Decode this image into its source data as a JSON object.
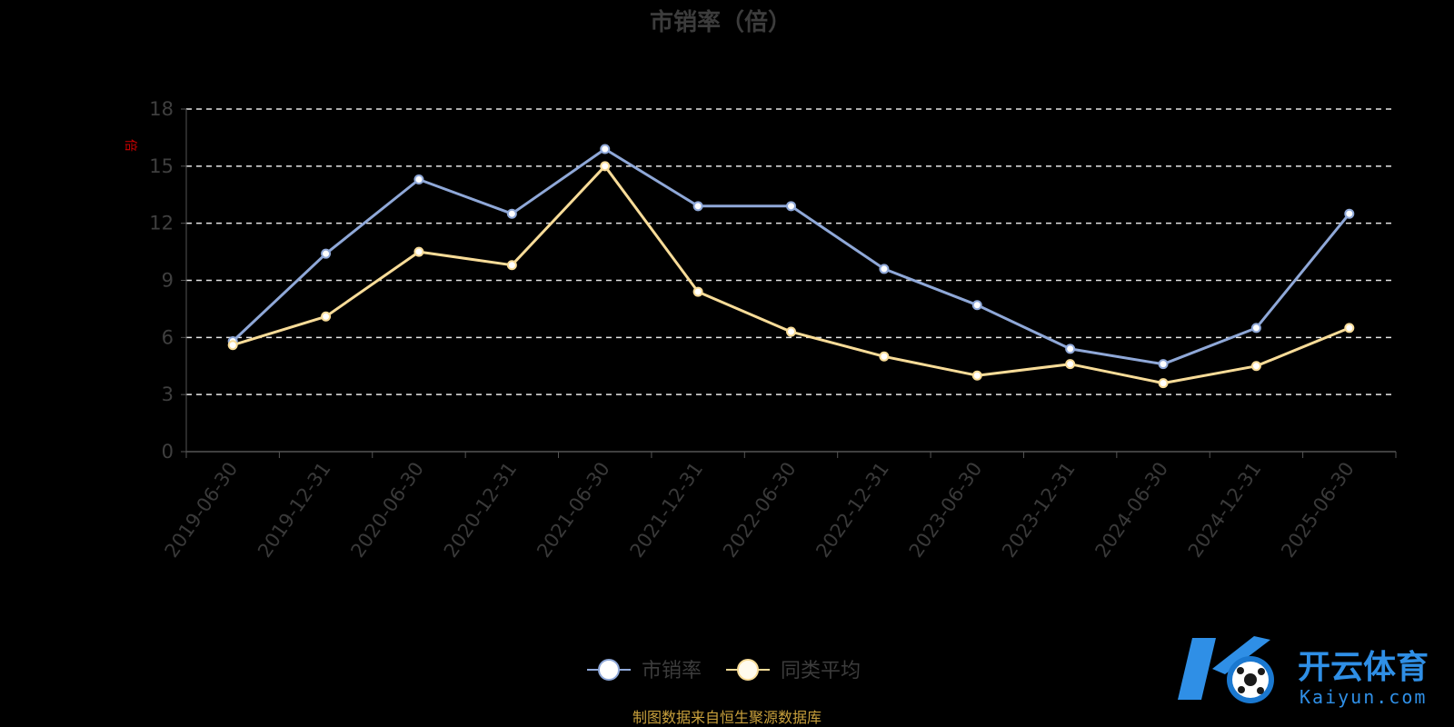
{
  "chart_data": {
    "type": "line",
    "title": "市销率（倍）",
    "ylabel": "倍",
    "xlabel": "",
    "categories": [
      "2019-06-30",
      "2019-12-31",
      "2020-06-30",
      "2020-12-31",
      "2021-06-30",
      "2021-12-31",
      "2022-06-30",
      "2022-12-31",
      "2023-06-30",
      "2023-12-31",
      "2024-06-30",
      "2024-12-31",
      "2025-06-30"
    ],
    "ylim": [
      0,
      18
    ],
    "yticks": [
      0,
      3,
      6,
      9,
      12,
      15,
      18
    ],
    "grid": true,
    "legend_position": "bottom-center",
    "series": [
      {
        "name": "市销率",
        "color": "#8fa8d8",
        "values": [
          5.8,
          10.4,
          14.3,
          12.5,
          15.9,
          12.9,
          12.9,
          9.6,
          7.7,
          5.4,
          4.6,
          6.5,
          12.5
        ]
      },
      {
        "name": "同类平均",
        "color": "#f8dc98",
        "values": [
          5.6,
          7.1,
          10.5,
          9.8,
          15.0,
          8.4,
          6.3,
          5.0,
          4.0,
          4.6,
          3.6,
          4.5,
          6.5
        ]
      }
    ]
  },
  "footer": {
    "source": "制图数据来自恒生聚源数据库"
  },
  "watermark": {
    "brand": "开云体育",
    "site": "Kaiyun.com"
  }
}
